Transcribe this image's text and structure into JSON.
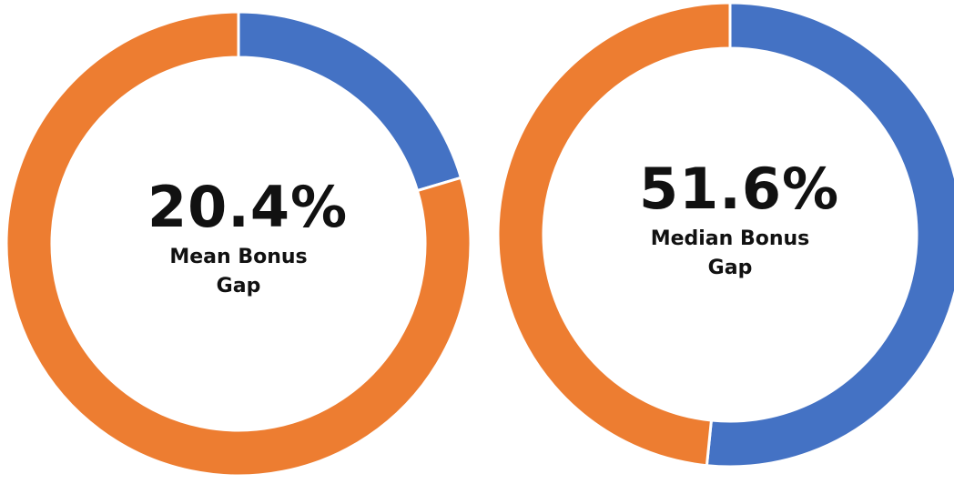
{
  "chart_data": [
    {
      "type": "donut",
      "values": [
        20.4,
        79.6
      ],
      "value_labels": [
        "20.4%",
        null
      ],
      "colors": [
        "#4472c4",
        "#ed7d31"
      ],
      "label": "Mean Bonus Gap"
    },
    {
      "type": "donut",
      "values": [
        51.6,
        48.4
      ],
      "value_labels": [
        "51.6%",
        null
      ],
      "colors": [
        "#4472c4",
        "#ed7d31"
      ],
      "label": "Median Bonus Gap"
    }
  ]
}
